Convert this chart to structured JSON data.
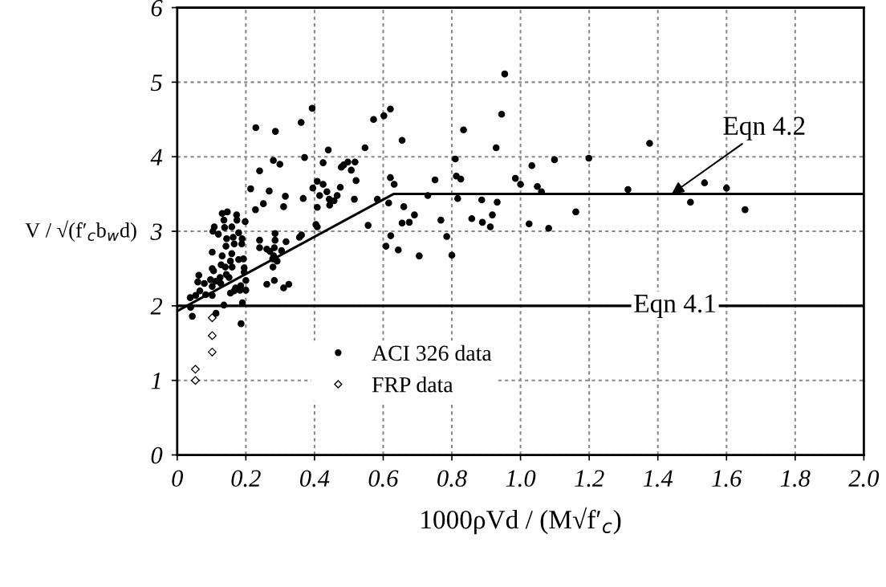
{
  "chart_data": {
    "type": "scatter",
    "xlabel": "1000ρVd / (M√f′$_{c}$)",
    "ylabel": "V / √(f′$_{c}$b$_{w}$d)",
    "xlim": [
      0,
      2.0
    ],
    "ylim": [
      0,
      6
    ],
    "xticks": [
      0,
      0.2,
      0.4,
      0.6,
      0.8,
      {
        "value": 1.0,
        "label": "1.0"
      },
      1.2,
      1.4,
      1.6,
      1.8,
      {
        "value": 2.0,
        "label": "2.0"
      }
    ],
    "yticks": [
      0,
      1,
      2,
      3,
      4,
      5,
      6
    ],
    "grid": true,
    "legend": "bottom",
    "series": [
      {
        "name": "ACI 326 data",
        "color": "#000000",
        "marker": "circle",
        "x": [
          0.229,
          0.286,
          0.361,
          0.393,
          0.28,
          0.299,
          0.371,
          0.24,
          0.214,
          0.268,
          0.315,
          0.228,
          0.251,
          0.31,
          0.367,
          0.131,
          0.146,
          0.173,
          0.136,
          0.174,
          0.198,
          0.108,
          0.138,
          0.159,
          0.104,
          0.12,
          0.179,
          0.144,
          0.163,
          0.189,
          0.142,
          0.166,
          0.188,
          0.102,
          0.131,
          0.159,
          0.155,
          0.179,
          0.193,
          0.128,
          0.14,
          0.16,
          0.102,
          0.106,
          0.195,
          0.195,
          0.143,
          0.125,
          0.151,
          0.063,
          0.097,
          0.112,
          0.102,
          0.127,
          0.2,
          0.06,
          0.079,
          0.066,
          0.083,
          0.102,
          0.054,
          0.038,
          0.17,
          0.185,
          0.166,
          0.183,
          0.2,
          0.155,
          0.136,
          0.19,
          0.039,
          0.044,
          0.186,
          0.113,
          0.24,
          0.24,
          0.261,
          0.27,
          0.285,
          0.285,
          0.283,
          0.304,
          0.317,
          0.281,
          0.278,
          0.291,
          0.279,
          0.261,
          0.283,
          0.31,
          0.325,
          0.356,
          0.362,
          0.572,
          0.602,
          0.621,
          0.655,
          0.547,
          0.44,
          0.425,
          0.478,
          0.485,
          0.497,
          0.518,
          0.507,
          0.521,
          0.408,
          0.395,
          0.425,
          0.436,
          0.475,
          0.415,
          0.466,
          0.443,
          0.457,
          0.444,
          0.408,
          0.516,
          0.583,
          0.616,
          0.621,
          0.632,
          0.404,
          0.408,
          0.556,
          0.66,
          0.691,
          0.655,
          0.676,
          0.73,
          0.751,
          0.768,
          0.622,
          0.608,
          0.644,
          0.705,
          0.785,
          0.8,
          0.81,
          0.813,
          0.826,
          0.817,
          0.834,
          0.929,
          0.945,
          0.887,
          0.932,
          0.858,
          0.889,
          0.918,
          0.912,
          0.985,
          0.954,
          1.033,
          1.099,
          1.199,
          1.376,
          1.0,
          1.049,
          1.061,
          1.313,
          1.536,
          1.6,
          1.495,
          1.654,
          1.161,
          1.025,
          1.082
        ],
        "values": [
          4.39,
          4.34,
          4.46,
          4.65,
          3.95,
          3.9,
          3.99,
          3.81,
          3.57,
          3.54,
          3.47,
          3.29,
          3.37,
          3.33,
          3.44,
          3.24,
          3.26,
          3.22,
          3.15,
          3.15,
          3.13,
          3.06,
          3.05,
          3.06,
          3.0,
          2.96,
          2.98,
          2.9,
          2.92,
          2.9,
          2.8,
          2.83,
          2.83,
          2.72,
          2.67,
          2.7,
          2.6,
          2.62,
          2.63,
          2.55,
          2.52,
          2.52,
          2.5,
          2.47,
          2.51,
          2.45,
          2.42,
          2.38,
          2.38,
          2.41,
          2.35,
          2.33,
          2.26,
          2.3,
          2.34,
          2.32,
          2.3,
          2.2,
          2.15,
          2.14,
          2.14,
          2.11,
          2.24,
          2.27,
          2.2,
          2.21,
          2.21,
          2.17,
          2.01,
          2.04,
          1.98,
          1.86,
          1.76,
          1.9,
          2.88,
          2.78,
          2.76,
          2.73,
          2.97,
          2.88,
          2.78,
          2.74,
          2.86,
          2.67,
          2.63,
          2.6,
          2.52,
          2.29,
          2.34,
          2.24,
          2.29,
          2.92,
          2.95,
          4.5,
          4.55,
          4.64,
          4.22,
          4.12,
          4.09,
          3.92,
          3.86,
          3.89,
          3.93,
          3.93,
          3.82,
          3.68,
          3.67,
          3.58,
          3.63,
          3.53,
          3.59,
          3.48,
          3.48,
          3.43,
          3.41,
          3.35,
          3.32,
          3.43,
          3.43,
          3.38,
          3.72,
          3.63,
          3.09,
          3.06,
          3.08,
          3.33,
          3.22,
          3.11,
          3.12,
          3.48,
          3.69,
          3.15,
          2.94,
          2.8,
          2.75,
          2.67,
          2.93,
          2.68,
          3.97,
          3.74,
          3.7,
          3.44,
          4.36,
          4.12,
          4.57,
          3.42,
          3.39,
          3.17,
          3.12,
          3.22,
          3.06,
          3.71,
          5.11,
          3.88,
          3.96,
          3.98,
          4.18,
          3.63,
          3.6,
          3.53,
          3.56,
          3.65,
          3.58,
          3.39,
          3.29,
          3.26,
          3.1,
          3.04
        ]
      },
      {
        "name": "FRP data",
        "color": "#000000",
        "marker": "diamond",
        "x": [
          0.102,
          0.102,
          0.102,
          0.053,
          0.053
        ],
        "values": [
          1.84,
          1.6,
          1.38,
          1.15,
          1.0
        ]
      },
      {
        "type": "line",
        "color": "#000000",
        "marker": "none",
        "x": [
          0,
          0.63,
          2.0
        ],
        "values": [
          1.93,
          3.5,
          3.5
        ]
      }
    ],
    "ref_lines": [
      {
        "axis": "y",
        "value": 2,
        "label": "Eqn 4.1",
        "color": "#000000"
      }
    ],
    "annotations": [
      {
        "text": "Eqn 4.2",
        "x": 1.44,
        "y": 3.5
      }
    ]
  }
}
